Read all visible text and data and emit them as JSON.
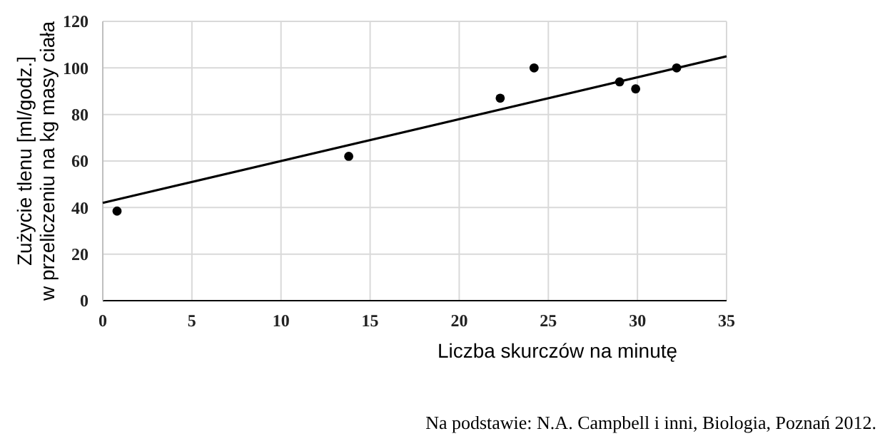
{
  "chart_data": {
    "type": "scatter",
    "xlabel": "Liczba skurczów na minutę",
    "ylabel": "Zużycie tlenu [ml/godz.]\nw przeliczeniu na kg masy ciała",
    "xlim": [
      0,
      35
    ],
    "xticks": [
      0,
      5,
      10,
      15,
      20,
      25,
      30,
      35
    ],
    "ylim": [
      0,
      120
    ],
    "yticks": [
      0,
      20,
      40,
      60,
      80,
      100,
      120
    ],
    "grid": true,
    "series": [
      {
        "marker": "circle",
        "color": "#000000",
        "x": [
          0.8,
          13.8,
          22.3,
          24.2,
          29,
          29.9,
          32.2
        ],
        "values": [
          38.5,
          62,
          87,
          100,
          94,
          91,
          100
        ]
      },
      {
        "type": "line",
        "marker": "none",
        "color": "#000000",
        "x": [
          0,
          35
        ],
        "values": [
          42,
          105
        ]
      }
    ],
    "annotations": [
      "Na podstawie: N.A. Campbell i inni, Biologia, Poznań 2012."
    ]
  }
}
